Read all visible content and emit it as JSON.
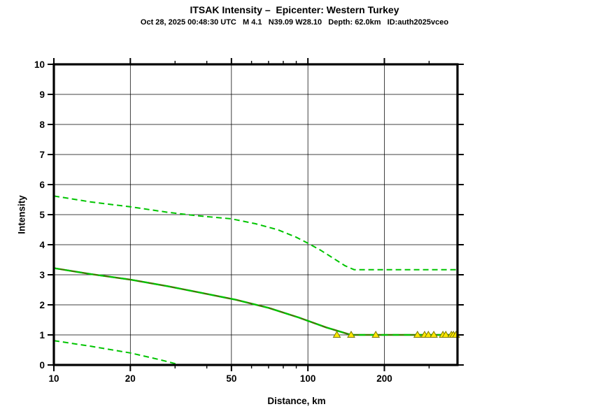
{
  "header": {
    "title": "ITSAK Intensity –  Epicenter: Western Turkey",
    "subtitle": "Oct 28, 2025 00:48:30 UTC   M 4.1   N39.09 W28.10   Depth: 62.0km   ID:auth2025vceo"
  },
  "chart_data": {
    "type": "line",
    "title": "ITSAK Intensity –  Epicenter: Western Turkey",
    "subtitle": "Oct 28, 2025 00:48:30 UTC   M 4.1   N39.09 W28.10   Depth: 62.0km   ID:auth2025vceo",
    "xlabel": "Distance, km",
    "ylabel": "Intensity",
    "x_scale": "log",
    "xlim": [
      10,
      388
    ],
    "ylim": [
      0,
      10
    ],
    "x_major_ticks": [
      10,
      20,
      50,
      100,
      200
    ],
    "x_minor_ticks": [
      30,
      40,
      60,
      70,
      80,
      90,
      300
    ],
    "y_ticks": [
      0,
      1,
      2,
      3,
      4,
      5,
      6,
      7,
      8,
      9,
      10
    ],
    "grid": true,
    "colors": {
      "frame": "#000000",
      "gridline": "#000000",
      "median_line": "#3A7D00",
      "sigma_line": "#00C400",
      "marker_fill": "#FFE800",
      "marker_stroke": "#787800"
    },
    "series": [
      {
        "name": "median-intensity",
        "style": "solid-with-dash-overlay",
        "x": [
          10,
          14,
          20,
          28,
          38,
          52,
          70,
          92,
          118,
          148,
          388
        ],
        "y": [
          3.22,
          3.02,
          2.84,
          2.62,
          2.4,
          2.17,
          1.9,
          1.58,
          1.25,
          1.0,
          1.0
        ]
      },
      {
        "name": "plus-one-sigma",
        "style": "dashed",
        "x": [
          10,
          14,
          20,
          28,
          36,
          50,
          62,
          76,
          90,
          100,
          112,
          126,
          140,
          152,
          388
        ],
        "y": [
          5.62,
          5.42,
          5.26,
          5.08,
          4.97,
          4.86,
          4.7,
          4.5,
          4.25,
          4.05,
          3.82,
          3.55,
          3.3,
          3.17,
          3.17
        ]
      },
      {
        "name": "minus-one-sigma",
        "style": "dashed",
        "x": [
          10,
          14,
          20,
          26,
          31.5
        ],
        "y": [
          0.81,
          0.62,
          0.4,
          0.18,
          0.0
        ]
      }
    ],
    "markers": {
      "name": "station-observations",
      "shape": "triangle-up",
      "y": 1.0,
      "x": [
        130,
        148,
        185,
        270,
        288,
        298,
        313,
        340,
        349,
        367,
        374,
        383
      ]
    }
  }
}
